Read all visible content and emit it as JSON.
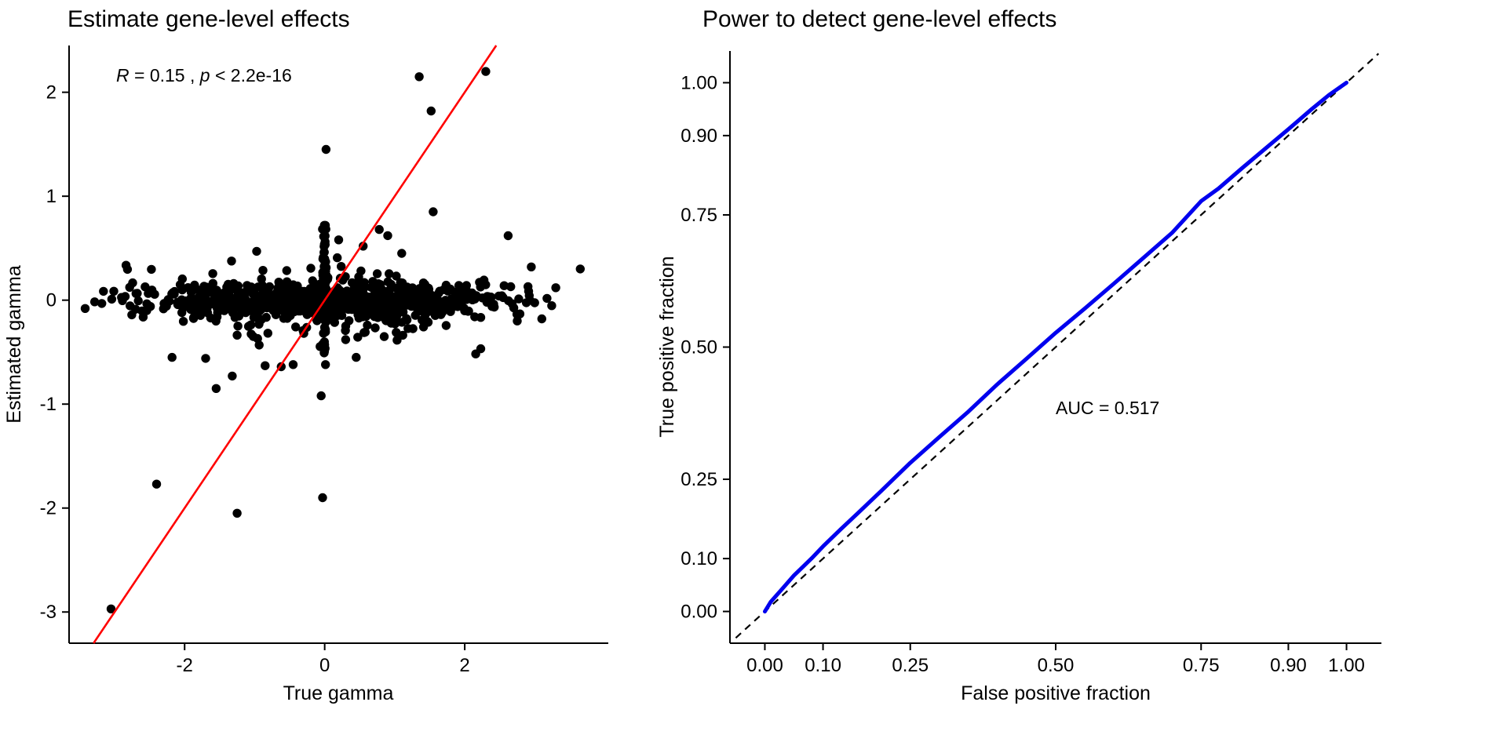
{
  "chart_data": [
    {
      "type": "scatter",
      "title": "Estimate gene-level effects",
      "xlabel": "True gamma",
      "ylabel": "Estimated gamma",
      "xlim": [
        -3.65,
        4.05
      ],
      "ylim": [
        -3.3,
        2.45
      ],
      "x_ticks": [
        -2,
        0,
        2
      ],
      "x_tick_labels": [
        "-2",
        "0",
        "2"
      ],
      "y_ticks": [
        2,
        1,
        0,
        -1,
        -2,
        -3
      ],
      "y_tick_labels": [
        "2",
        "1",
        "0",
        "-1",
        "-2",
        "-3"
      ],
      "annotation": {
        "parts": [
          "R",
          " = 0.15 , ",
          "p",
          " < 2.2e-16"
        ]
      },
      "point_color": "#000000",
      "fit_line": {
        "color": "#FF0000",
        "slope": 1,
        "intercept": 0
      },
      "cloud": {
        "n": 800,
        "seed": 11,
        "x_sd": 1.35,
        "x_max_abs": 3.3,
        "y_sd_main": 0.09,
        "y_sd_wide": 0.24,
        "wide_fraction": 0.12
      },
      "vertical_cluster": {
        "n": 115,
        "x_sd": 0.013,
        "y_mean": 0.05,
        "y_sd": 0.3,
        "y_min": -0.62,
        "y_max": 0.72
      },
      "outlier_points": [
        [
          -3.05,
          -2.97
        ],
        [
          -2.4,
          -1.77
        ],
        [
          -1.25,
          -2.05
        ],
        [
          -0.03,
          -1.9
        ],
        [
          -0.05,
          -0.92
        ],
        [
          -1.55,
          -0.85
        ],
        [
          -1.32,
          -0.73
        ],
        [
          -2.18,
          -0.55
        ],
        [
          -1.7,
          -0.56
        ],
        [
          -0.85,
          -0.63
        ],
        [
          -0.62,
          -0.64
        ],
        [
          -0.45,
          -0.62
        ],
        [
          0.45,
          -0.55
        ],
        [
          0.3,
          -0.38
        ],
        [
          0.85,
          -0.35
        ],
        [
          1.35,
          2.15
        ],
        [
          1.52,
          1.82
        ],
        [
          2.3,
          2.2
        ],
        [
          0.02,
          1.45
        ],
        [
          1.55,
          0.85
        ],
        [
          0.78,
          0.68
        ],
        [
          0.55,
          0.52
        ],
        [
          2.62,
          0.62
        ],
        [
          3.65,
          0.3
        ],
        [
          2.95,
          0.32
        ],
        [
          -3.42,
          -0.08
        ],
        [
          3.3,
          0.12
        ],
        [
          2.75,
          -0.2
        ],
        [
          1.1,
          0.45
        ],
        [
          0.2,
          0.58
        ]
      ]
    },
    {
      "type": "line",
      "title": "Power to detect gene-level effects",
      "xlabel": "False positive fraction",
      "ylabel": "True positive fraction",
      "xlim": [
        -0.06,
        1.06
      ],
      "ylim": [
        -0.06,
        1.06
      ],
      "x_ticks": [
        0,
        0.1,
        0.25,
        0.5,
        0.75,
        0.9,
        1
      ],
      "x_tick_labels": [
        "0.00",
        "0.10",
        "0.25",
        "0.50",
        "0.75",
        "0.90",
        "1.00"
      ],
      "y_ticks": [
        0,
        0.1,
        0.25,
        0.5,
        0.75,
        0.9,
        1
      ],
      "y_tick_labels": [
        "0.00",
        "0.10",
        "0.25",
        "0.50",
        "0.75",
        "0.90",
        "1.00"
      ],
      "annotation": "AUC = 0.517",
      "auc": 0.517,
      "roc_color": "#0000EE",
      "diagonal": {
        "style": "dashed",
        "color": "#000000"
      },
      "roc_points": [
        [
          0,
          0
        ],
        [
          0.01,
          0.018
        ],
        [
          0.03,
          0.043
        ],
        [
          0.05,
          0.068
        ],
        [
          0.08,
          0.1
        ],
        [
          0.1,
          0.123
        ],
        [
          0.13,
          0.155
        ],
        [
          0.16,
          0.186
        ],
        [
          0.2,
          0.228
        ],
        [
          0.25,
          0.281
        ],
        [
          0.3,
          0.33
        ],
        [
          0.35,
          0.378
        ],
        [
          0.4,
          0.43
        ],
        [
          0.45,
          0.478
        ],
        [
          0.5,
          0.527
        ],
        [
          0.55,
          0.573
        ],
        [
          0.6,
          0.62
        ],
        [
          0.65,
          0.668
        ],
        [
          0.7,
          0.716
        ],
        [
          0.75,
          0.776
        ],
        [
          0.78,
          0.8
        ],
        [
          0.82,
          0.838
        ],
        [
          0.86,
          0.875
        ],
        [
          0.9,
          0.912
        ],
        [
          0.94,
          0.95
        ],
        [
          0.97,
          0.977
        ],
        [
          1,
          1
        ]
      ]
    }
  ]
}
